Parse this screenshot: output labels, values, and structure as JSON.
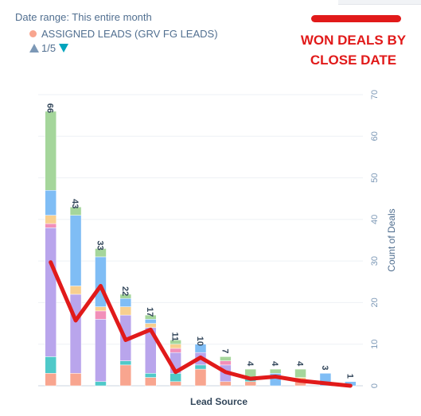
{
  "header": {
    "date_range": "Date range: This entire month",
    "legend_label": "ASSIGNED LEADS (GRV FG LEADS)",
    "pager": "1/5",
    "annotation_line1": "WON DEALS BY",
    "annotation_line2": "CLOSE DATE"
  },
  "colors": {
    "legend_dot": "#f8a58f",
    "annotation": "#e11a1a",
    "line": "#e11a1a",
    "stack": [
      "#f8a58f",
      "#4fc9c9",
      "#b9a5ec",
      "#f28fb9",
      "#f8cf8f",
      "#7fbdf5",
      "#a5d69b"
    ]
  },
  "chart_data": {
    "type": "bar",
    "stacked": true,
    "xlabel": "Lead Source",
    "ylabel": "Count of Deals",
    "ylim": [
      0,
      70
    ],
    "yticks": [
      0,
      10,
      20,
      30,
      40,
      50,
      60,
      70
    ],
    "totals": [
      66,
      43,
      33,
      22,
      17,
      11,
      10,
      7,
      4,
      4,
      4,
      3,
      1
    ],
    "segments": [
      [
        3,
        4,
        31,
        1,
        2,
        6,
        19
      ],
      [
        3,
        0,
        19,
        0,
        2,
        17,
        2
      ],
      [
        0,
        1,
        15,
        2,
        1,
        12,
        2
      ],
      [
        5,
        1,
        11,
        0,
        2,
        2,
        1
      ],
      [
        2,
        1,
        11,
        0,
        1,
        1,
        1
      ],
      [
        1,
        2,
        5,
        1,
        1,
        0,
        1
      ],
      [
        4,
        1,
        3,
        0,
        0,
        2,
        0
      ],
      [
        1,
        0,
        4,
        1,
        0,
        0,
        1
      ],
      [
        1,
        1,
        0,
        0,
        0,
        0,
        2
      ],
      [
        0,
        0,
        0,
        0,
        0,
        3,
        1
      ],
      [
        1,
        0,
        0,
        0,
        1,
        0,
        2
      ],
      [
        0,
        0,
        0,
        0,
        0,
        3,
        0
      ],
      [
        0,
        0,
        0,
        0,
        0,
        1,
        0
      ]
    ],
    "overlay_line": {
      "values": [
        29.7,
        15.7,
        24,
        11,
        13.5,
        3.3,
        6.8,
        3.3,
        1.7,
        2.2,
        1.2,
        0.6,
        0
      ]
    }
  }
}
